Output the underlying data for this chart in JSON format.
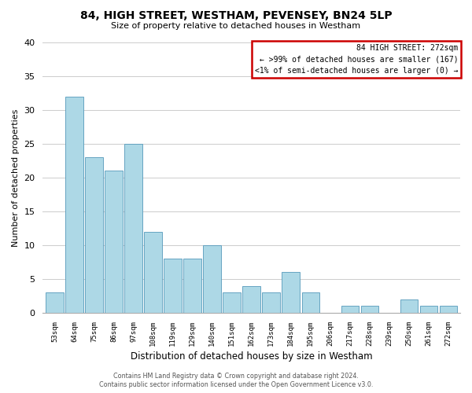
{
  "title": "84, HIGH STREET, WESTHAM, PEVENSEY, BN24 5LP",
  "subtitle": "Size of property relative to detached houses in Westham",
  "xlabel": "Distribution of detached houses by size in Westham",
  "ylabel": "Number of detached properties",
  "categories": [
    "53sqm",
    "64sqm",
    "75sqm",
    "86sqm",
    "97sqm",
    "108sqm",
    "119sqm",
    "129sqm",
    "140sqm",
    "151sqm",
    "162sqm",
    "173sqm",
    "184sqm",
    "195sqm",
    "206sqm",
    "217sqm",
    "228sqm",
    "239sqm",
    "250sqm",
    "261sqm",
    "272sqm"
  ],
  "values": [
    3,
    32,
    23,
    21,
    25,
    12,
    8,
    8,
    10,
    3,
    4,
    3,
    6,
    3,
    0,
    1,
    1,
    0,
    2,
    1,
    1
  ],
  "bar_color": "#add8e6",
  "bar_edge_color": "#5599bb",
  "highlight_index": 20,
  "box_text_line1": "84 HIGH STREET: 272sqm",
  "box_text_line2": "← >99% of detached houses are smaller (167)",
  "box_text_line3": "<1% of semi-detached houses are larger (0) →",
  "box_edge_color": "#cc0000",
  "ylim": [
    0,
    40
  ],
  "yticks": [
    0,
    5,
    10,
    15,
    20,
    25,
    30,
    35,
    40
  ],
  "footer_line1": "Contains HM Land Registry data © Crown copyright and database right 2024.",
  "footer_line2": "Contains public sector information licensed under the Open Government Licence v3.0.",
  "bg_color": "#ffffff",
  "grid_color": "#cccccc"
}
